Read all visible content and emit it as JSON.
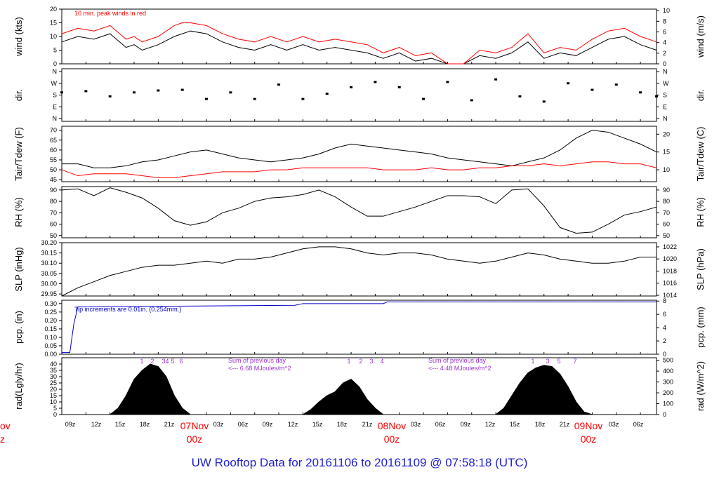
{
  "title": "UW Rooftop Data for 20161106  to  20161109 @ 07:58:18  (UTC)",
  "colors": {
    "axis": "#000000",
    "series_main": "#000000",
    "series_red": "#ff0000",
    "precip": "#0000cc",
    "purple_text": "#9933cc",
    "date_labels": "#ff0000",
    "title": "#1f1fd0"
  },
  "chart_data": [
    {
      "type": "line",
      "panel": "wind",
      "ylabel_left": "wind (kts)",
      "ylabel_right": "wind (m/s)",
      "ylim": [
        0,
        20
      ],
      "yticks_left": [
        0,
        5,
        10,
        15,
        20
      ],
      "yticks_right": [
        0,
        2,
        4,
        6,
        8,
        10
      ],
      "annotation": "10 min. peak winds in red",
      "series": [
        {
          "name": "wind",
          "color": "#000000",
          "x": [
            0,
            2,
            4,
            6,
            8,
            9,
            10,
            12,
            14,
            15,
            16,
            18,
            20,
            22,
            24,
            26,
            28,
            30,
            32,
            34,
            36,
            38,
            40,
            42,
            44,
            46,
            48,
            50,
            52,
            54,
            56,
            58,
            60,
            62,
            64,
            66,
            68,
            70,
            72,
            74
          ],
          "values": [
            8,
            10,
            9,
            11,
            6,
            7,
            5,
            7,
            10,
            11,
            12,
            11,
            8,
            6,
            5,
            7,
            5,
            7,
            5,
            6,
            5,
            4,
            2,
            4,
            1,
            2,
            0,
            0,
            3,
            2,
            4,
            8,
            2,
            4,
            3,
            6,
            9,
            10,
            7,
            5
          ]
        },
        {
          "name": "peak",
          "color": "#ff0000",
          "x": [
            0,
            2,
            4,
            6,
            8,
            9,
            10,
            12,
            14,
            15,
            16,
            18,
            20,
            22,
            24,
            26,
            28,
            30,
            32,
            34,
            36,
            38,
            40,
            42,
            44,
            46,
            48,
            50,
            52,
            54,
            56,
            58,
            60,
            62,
            64,
            66,
            68,
            70,
            72,
            74
          ],
          "values": [
            11,
            13,
            12,
            14,
            9,
            10,
            8,
            10,
            14,
            15,
            15,
            14,
            11,
            9,
            8,
            10,
            8,
            10,
            8,
            9,
            8,
            7,
            4,
            6,
            3,
            4,
            0,
            0,
            5,
            4,
            6,
            11,
            4,
            6,
            5,
            9,
            12,
            13,
            10,
            8
          ]
        }
      ]
    },
    {
      "type": "scatter",
      "panel": "dir",
      "ylabel_left": "dir.",
      "ylabel_right": "dir.",
      "yticks_left": [
        "N",
        "E",
        "S",
        "W",
        "N"
      ],
      "yticks_right": [
        "N",
        "E",
        "S",
        "W",
        "N"
      ],
      "series": [
        {
          "name": "direction",
          "color": "#000000",
          "x": [
            0,
            3,
            6,
            9,
            12,
            15,
            18,
            21,
            24,
            27,
            30,
            33,
            36,
            39,
            42,
            45,
            48,
            51,
            54,
            57,
            60,
            63,
            66,
            69,
            72,
            74
          ],
          "values": [
            200,
            210,
            170,
            200,
            215,
            220,
            150,
            200,
            150,
            260,
            150,
            190,
            240,
            280,
            240,
            150,
            280,
            140,
            300,
            170,
            130,
            270,
            220,
            260,
            200,
            170
          ]
        }
      ]
    },
    {
      "type": "line",
      "panel": "temperature",
      "ylabel_left": "Tair/Tdew (F)",
      "ylabel_right": "Tair/Tdew (C)",
      "ylim": [
        44,
        72
      ],
      "yticks_left": [
        45,
        50,
        55,
        60,
        65,
        70
      ],
      "yticks_right": [
        10,
        15,
        20
      ],
      "series": [
        {
          "name": "Tair",
          "color": "#000000",
          "x": [
            0,
            2,
            4,
            6,
            8,
            10,
            12,
            14,
            16,
            18,
            20,
            22,
            24,
            26,
            28,
            30,
            32,
            34,
            36,
            38,
            40,
            42,
            44,
            46,
            48,
            50,
            52,
            54,
            56,
            58,
            60,
            62,
            64,
            66,
            68,
            70,
            72,
            74
          ],
          "values": [
            53,
            53,
            51,
            51,
            52,
            54,
            55,
            57,
            59,
            60,
            58,
            56,
            55,
            54,
            55,
            56,
            58,
            61,
            63,
            62,
            61,
            60,
            59,
            58,
            56,
            55,
            54,
            53,
            52,
            54,
            56,
            60,
            66,
            70,
            69,
            66,
            63,
            59
          ]
        },
        {
          "name": "Tdew",
          "color": "#ff0000",
          "x": [
            0,
            2,
            4,
            6,
            8,
            10,
            12,
            14,
            16,
            18,
            20,
            22,
            24,
            26,
            28,
            30,
            32,
            34,
            36,
            38,
            40,
            42,
            44,
            46,
            48,
            50,
            52,
            54,
            56,
            58,
            60,
            62,
            64,
            66,
            68,
            70,
            72,
            74
          ],
          "values": [
            50,
            47,
            48,
            48,
            48,
            47,
            46,
            46,
            47,
            48,
            49,
            49,
            49,
            50,
            50,
            51,
            51,
            51,
            51,
            51,
            50,
            50,
            50,
            51,
            50,
            50,
            51,
            51,
            52,
            52,
            53,
            52,
            53,
            54,
            54,
            53,
            53,
            51
          ]
        }
      ]
    },
    {
      "type": "line",
      "panel": "rh",
      "ylabel_left": "RH (%)",
      "ylabel_right": "RH (%)",
      "ylim": [
        48,
        93
      ],
      "yticks_left": [
        50,
        60,
        70,
        80,
        90
      ],
      "yticks_right": [
        50,
        60,
        70,
        80,
        90
      ],
      "series": [
        {
          "name": "RH",
          "color": "#000000",
          "x": [
            0,
            2,
            4,
            6,
            8,
            10,
            12,
            14,
            16,
            18,
            20,
            22,
            24,
            26,
            28,
            30,
            32,
            34,
            36,
            38,
            40,
            42,
            44,
            46,
            48,
            50,
            52,
            54,
            56,
            58,
            60,
            62,
            64,
            66,
            68,
            70,
            72,
            74
          ],
          "values": [
            90,
            91,
            85,
            92,
            88,
            83,
            74,
            63,
            59,
            62,
            70,
            74,
            80,
            83,
            84,
            86,
            90,
            84,
            75,
            67,
            67,
            71,
            75,
            80,
            85,
            85,
            84,
            78,
            90,
            91,
            76,
            57,
            52,
            53,
            60,
            68,
            71,
            75
          ]
        }
      ]
    },
    {
      "type": "line",
      "panel": "slp",
      "ylabel_left": "SLP (inHg)",
      "ylabel_right": "SLP (hPa)",
      "ylim": [
        29.94,
        30.2
      ],
      "yticks_left": [
        29.95,
        30.0,
        30.05,
        30.1,
        30.15,
        30.2
      ],
      "yticks_right": [
        1014,
        1016,
        1018,
        1020,
        1022
      ],
      "series": [
        {
          "name": "SLP",
          "color": "#000000",
          "x": [
            0,
            2,
            4,
            6,
            8,
            10,
            12,
            14,
            16,
            18,
            20,
            22,
            24,
            26,
            28,
            30,
            32,
            34,
            36,
            38,
            40,
            42,
            44,
            46,
            48,
            50,
            52,
            54,
            56,
            58,
            60,
            62,
            64,
            66,
            68,
            70,
            72,
            74
          ],
          "values": [
            29.94,
            29.98,
            30.01,
            30.04,
            30.06,
            30.08,
            30.09,
            30.09,
            30.1,
            30.11,
            30.1,
            30.12,
            30.12,
            30.13,
            30.15,
            30.17,
            30.18,
            30.18,
            30.17,
            30.15,
            30.14,
            30.15,
            30.15,
            30.14,
            30.12,
            30.11,
            30.1,
            30.11,
            30.13,
            30.15,
            30.14,
            30.12,
            30.11,
            30.1,
            30.1,
            30.11,
            30.13,
            30.13
          ]
        }
      ]
    },
    {
      "type": "line",
      "panel": "precip",
      "ylabel_left": "pcp. (in)",
      "ylabel_right": "pcp. (mm)",
      "ylim": [
        0,
        0.32
      ],
      "yticks_left": [
        0.0,
        0.05,
        0.1,
        0.15,
        0.2,
        0.25,
        0.3
      ],
      "yticks_right": [
        0,
        2,
        4,
        6,
        8
      ],
      "annotation": "Tip increments are 0.01in. (0.254mm.)",
      "series": [
        {
          "name": "precip",
          "color": "#0000cc",
          "x": [
            0,
            1,
            1.5,
            2,
            29,
            30,
            40,
            40.5,
            74
          ],
          "values": [
            0.01,
            0.01,
            0.18,
            0.28,
            0.29,
            0.3,
            0.3,
            0.31,
            0.31
          ]
        }
      ]
    },
    {
      "type": "area",
      "panel": "rad",
      "ylabel_left": "rad(Lgly/hr)",
      "ylabel_right": "rad (W/m^2)",
      "ylim": [
        0,
        45
      ],
      "yticks_left": [
        0,
        5,
        10,
        15,
        20,
        25,
        30,
        35,
        40
      ],
      "yticks_right": [
        0,
        100,
        200,
        300,
        400,
        500
      ],
      "annotations": [
        "Sum of previous day",
        "<--- 6.68 MJoules/m^2",
        "Sum of previous day",
        "<--- 4.48 MJoules/m^2"
      ],
      "hour_marks": [
        "1",
        "2",
        "3",
        "4",
        "5",
        "6",
        "1",
        "2",
        "3",
        "4",
        "1",
        "3",
        "5",
        "7"
      ],
      "series": [
        {
          "name": "rad",
          "color": "#000000",
          "x": [
            6,
            7,
            8,
            9,
            10,
            11,
            12,
            13,
            14,
            15,
            16,
            17,
            30,
            31,
            32,
            33,
            34,
            35,
            36,
            37,
            38,
            39,
            40,
            41,
            54,
            55,
            56,
            57,
            58,
            59,
            60,
            61,
            62,
            63,
            64,
            65,
            66
          ],
          "values": [
            0,
            5,
            15,
            28,
            35,
            40,
            38,
            30,
            15,
            5,
            0,
            0,
            0,
            4,
            10,
            15,
            18,
            25,
            28,
            22,
            12,
            5,
            0,
            0,
            0,
            5,
            15,
            25,
            33,
            37,
            39,
            38,
            32,
            22,
            10,
            2,
            0
          ]
        }
      ]
    }
  ],
  "x_axis": {
    "hour_labels": [
      "09z",
      "12z",
      "15z",
      "18z",
      "21z",
      "03z",
      "06z",
      "09z",
      "12z",
      "15z",
      "18z",
      "21z",
      "03z",
      "06z",
      "09z",
      "12z",
      "15z",
      "18z",
      "21z",
      "03z",
      "06z"
    ],
    "date_labels": [
      "07Nov",
      "08Nov",
      "09Nov"
    ],
    "date_sublabels": [
      "00z",
      "00z",
      "00z"
    ],
    "edge_label_top": "ov",
    "edge_label_bottom": "z"
  }
}
